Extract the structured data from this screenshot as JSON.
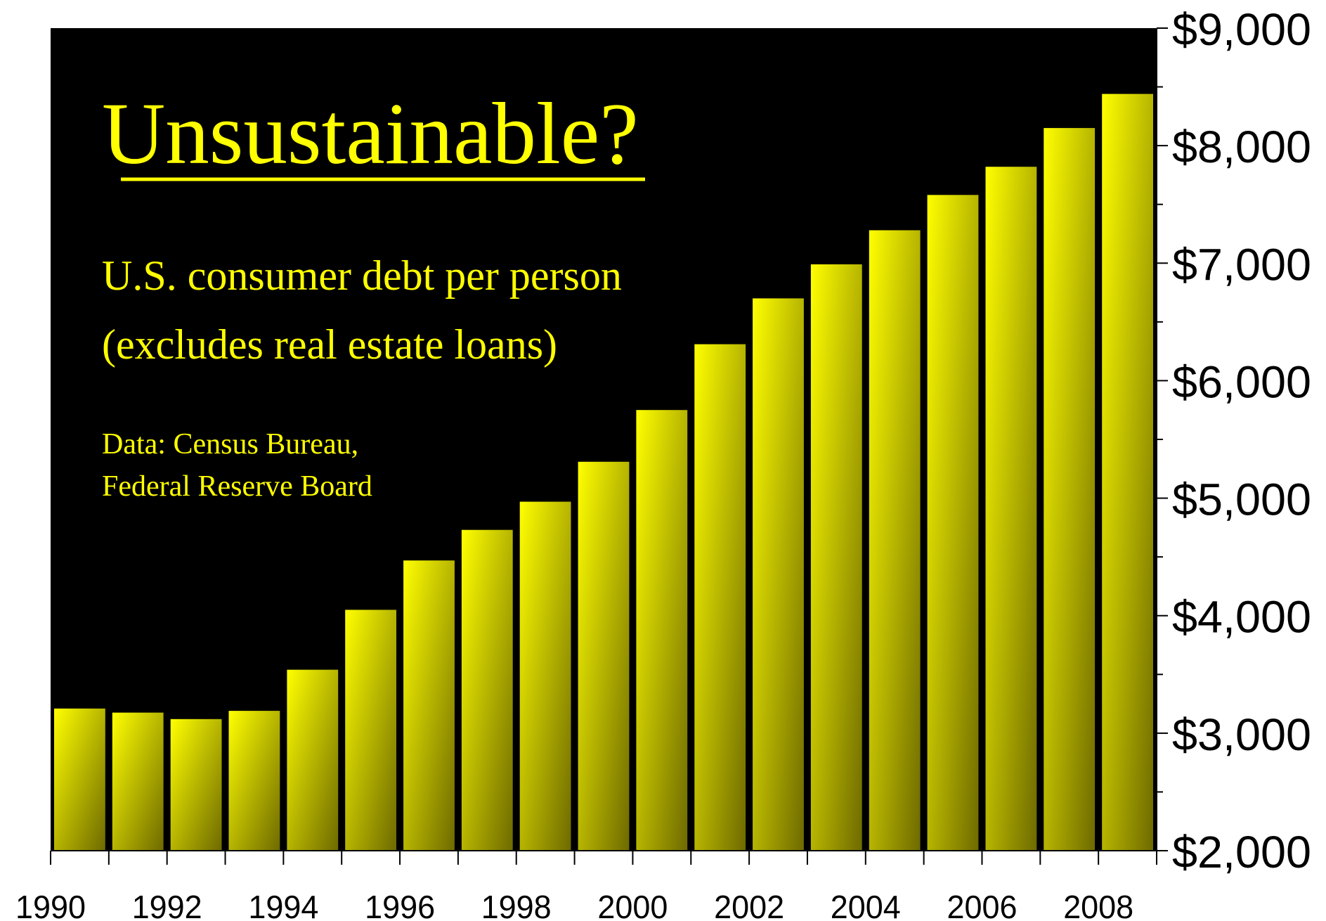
{
  "chart_data": {
    "type": "bar",
    "title": "Unsustainable?",
    "subtitle_lines": [
      "U.S. consumer debt per person",
      "(excludes real estate loans)"
    ],
    "source_lines": [
      "Data:  Census Bureau,",
      "Federal Reserve Board"
    ],
    "categories": [
      "1990",
      "1991",
      "1992",
      "1993",
      "1994",
      "1995",
      "1996",
      "1997",
      "1998",
      "1999",
      "2000",
      "2001",
      "2002",
      "2003",
      "2004",
      "2005",
      "2006",
      "2007",
      "2008"
    ],
    "values": [
      3210,
      3175,
      3120,
      3190,
      3540,
      4050,
      4470,
      4730,
      4970,
      5310,
      5750,
      6310,
      6700,
      6990,
      7280,
      7580,
      7820,
      8150,
      8440
    ],
    "x_tick_labels": [
      "1990",
      "1992",
      "1994",
      "1996",
      "1998",
      "2000",
      "2002",
      "2004",
      "2006",
      "2008"
    ],
    "y_tick_labels": [
      "$2,000",
      "$3,000",
      "$4,000",
      "$5,000",
      "$6,000",
      "$7,000",
      "$8,000",
      "$9,000"
    ],
    "ylim": [
      2000,
      9000
    ],
    "y_axis_side": "right",
    "grid": false,
    "legend": "none",
    "colors": {
      "background": "#000000",
      "bar_light": "#ffff00",
      "bar_dark": "#6e6a00",
      "text": "#ffff00",
      "axis": "#000000"
    }
  }
}
